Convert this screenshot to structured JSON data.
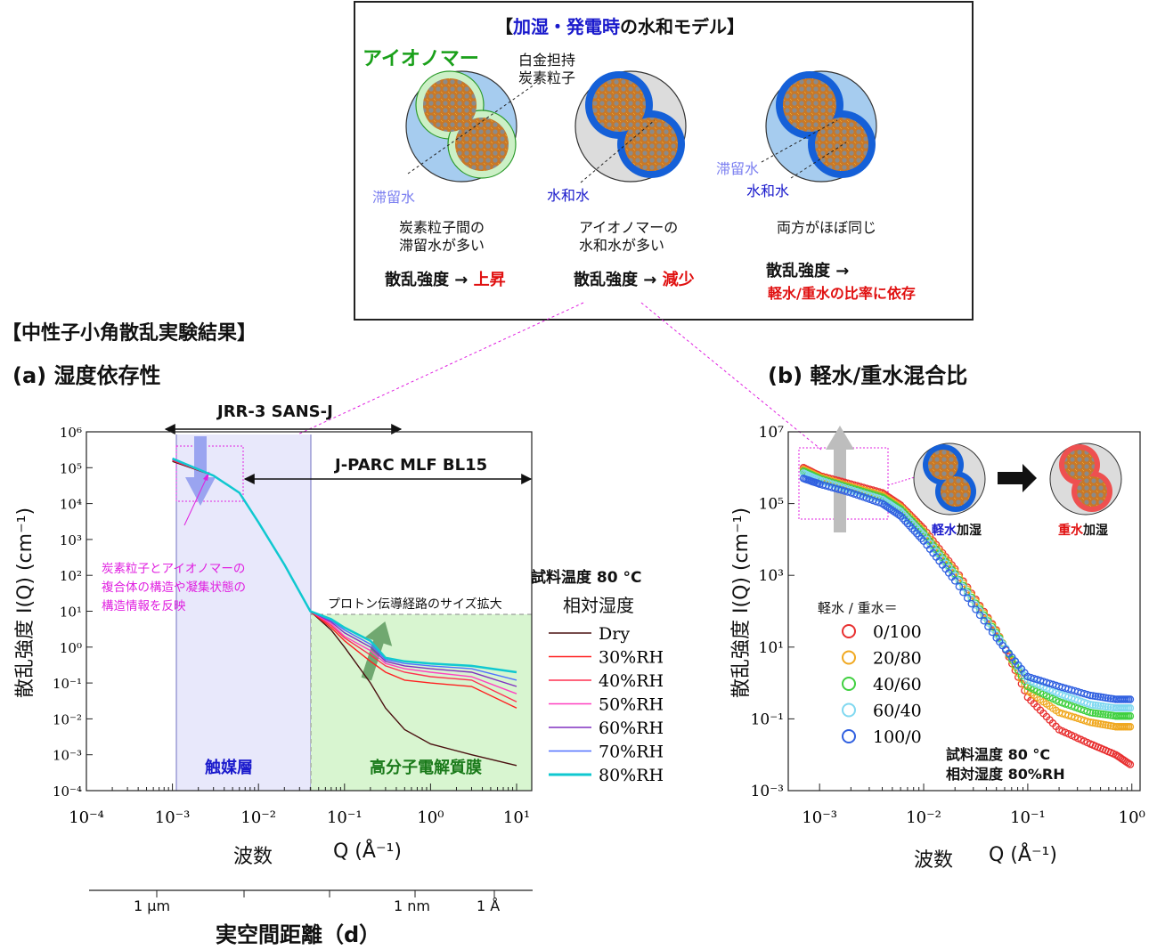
{
  "model_box": {
    "title_bracket_open": "【",
    "title_blue": "加湿・発電時",
    "title_rest": "の水和モデル",
    "title_bracket_close": "】",
    "ionomer_label": "アイオノマー",
    "pt_carbon_label_1": "白金担持",
    "pt_carbon_label_2": "炭素粒子",
    "stagnant_water": "滞留水",
    "hydration_water": "水和水",
    "desc_1a": "炭素粒子間の",
    "desc_1b": "滞留水が多い",
    "desc_2a": "アイオノマーの",
    "desc_2b": "水和水が多い",
    "desc_3a": "両方がほぼ同じ",
    "scatter_prefix": "散乱強度 →",
    "rise": "上昇",
    "fall": "減少",
    "depend": "軽水/重水の比率に依存",
    "colors": {
      "ionomer": "#1aa01a",
      "blue": "#1a1acc",
      "light_blue": "#7b7ff0",
      "red": "#e01010",
      "magenta": "#e020e0"
    }
  },
  "left": {
    "section_title": "【中性子小角散乱実験結果】",
    "panel_title": "(a) 湿度依存性",
    "jrr3": "JRR-3 SANS-J",
    "jparc": "J-PARC MLF BL15",
    "annotation_1": "炭素粒子とアイオノマーの",
    "annotation_2": "複合体の構造や凝集状態の",
    "annotation_3": "構造情報を反映",
    "proton_path": "プロトン伝導経路のサイズ拡大",
    "catalyst_layer": "触媒層",
    "membrane": "高分子電解質膜",
    "sample_temp": "試料温度 80 °C",
    "rh_title": "相対湿度",
    "ylabel": "散乱強度 I(Q) (cm⁻¹)",
    "xlabel_word": "波数",
    "xlabel_unit": "Q (Å⁻¹)",
    "d_ticks": [
      "1 μm",
      "1 nm",
      "1 Å"
    ],
    "d_label": "実空間距離（d）"
  },
  "right": {
    "panel_title": "(b) 軽水/重水混合比",
    "ylabel": "散乱強度 I(Q) (cm⁻¹)",
    "xlabel_word": "波数",
    "xlabel_unit": "Q (Å⁻¹)",
    "legend_title": "軽水 / 重水＝",
    "light_water": "軽水",
    "heavy_water": "重水",
    "humidified": "加湿",
    "sample_temp": "試料温度 80 °C",
    "rh": "相対湿度 80%RH"
  },
  "chart_data": [
    {
      "type": "line",
      "title": "(a) 湿度依存性",
      "xlabel": "波数 Q (Å⁻¹)",
      "ylabel": "散乱強度 I(Q) (cm⁻¹)",
      "xscale": "log",
      "yscale": "log",
      "xlim": [
        0.0001,
        15
      ],
      "ylim": [
        0.0001,
        1000000
      ],
      "x_ticks": [
        "10⁻⁴",
        "10⁻³",
        "10⁻²",
        "10⁻¹",
        "10⁰",
        "10¹"
      ],
      "y_ticks": [
        "10⁻⁴",
        "10⁻³",
        "10⁻²",
        "10⁻¹",
        "10⁰",
        "10¹",
        "10²",
        "10³",
        "10⁴",
        "10⁵",
        "10⁶"
      ],
      "legend_position": "right",
      "series": [
        {
          "name": "Dry",
          "color": "#4a1010",
          "x": [
            0.001,
            0.003,
            0.006,
            0.01,
            0.02,
            0.04,
            0.07,
            0.1,
            0.2,
            0.3,
            0.5,
            1,
            3,
            10
          ],
          "y": [
            150000,
            60000,
            20000,
            3000,
            200,
            10,
            3,
            1,
            0.1,
            0.02,
            0.005,
            0.002,
            0.001,
            0.0005
          ]
        },
        {
          "name": "30%RH",
          "color": "#ff2020",
          "x": [
            0.001,
            0.003,
            0.006,
            0.01,
            0.02,
            0.04,
            0.07,
            0.1,
            0.2,
            0.3,
            0.5,
            1,
            3,
            10
          ],
          "y": [
            160000,
            60000,
            20000,
            3000,
            200,
            10,
            3.5,
            1.5,
            0.4,
            0.2,
            0.12,
            0.1,
            0.08,
            0.02
          ]
        },
        {
          "name": "40%RH",
          "color": "#ff3050",
          "x": [
            0.001,
            0.003,
            0.006,
            0.01,
            0.02,
            0.04,
            0.07,
            0.1,
            0.2,
            0.3,
            0.5,
            1,
            3,
            10
          ],
          "y": [
            160000,
            60000,
            20000,
            3000,
            200,
            10,
            4,
            1.8,
            0.6,
            0.3,
            0.2,
            0.15,
            0.12,
            0.03
          ]
        },
        {
          "name": "50%RH",
          "color": "#ff40c0",
          "x": [
            0.001,
            0.003,
            0.006,
            0.01,
            0.02,
            0.04,
            0.07,
            0.1,
            0.2,
            0.3,
            0.5,
            1,
            3,
            10
          ],
          "y": [
            170000,
            60000,
            20000,
            3000,
            200,
            10,
            4.5,
            2,
            0.8,
            0.35,
            0.25,
            0.2,
            0.15,
            0.05
          ]
        },
        {
          "name": "60%RH",
          "color": "#8030c0",
          "x": [
            0.001,
            0.003,
            0.006,
            0.01,
            0.02,
            0.04,
            0.07,
            0.1,
            0.2,
            0.3,
            0.5,
            1,
            3,
            10
          ],
          "y": [
            170000,
            60000,
            20000,
            3000,
            200,
            10,
            5,
            2.5,
            1,
            0.4,
            0.3,
            0.25,
            0.2,
            0.08
          ]
        },
        {
          "name": "70%RH",
          "color": "#5070ff",
          "x": [
            0.001,
            0.003,
            0.006,
            0.01,
            0.02,
            0.04,
            0.07,
            0.1,
            0.2,
            0.3,
            0.5,
            1,
            3,
            10
          ],
          "y": [
            180000,
            60000,
            20000,
            3000,
            200,
            10,
            5.5,
            3,
            1.2,
            0.45,
            0.35,
            0.3,
            0.25,
            0.12
          ]
        },
        {
          "name": "80%RH",
          "color": "#10c8d0",
          "x": [
            0.001,
            0.003,
            0.006,
            0.01,
            0.02,
            0.04,
            0.07,
            0.1,
            0.2,
            0.3,
            0.5,
            1,
            3,
            10
          ],
          "y": [
            180000,
            60000,
            20000,
            3000,
            200,
            10,
            6,
            3.5,
            1.5,
            0.5,
            0.4,
            0.35,
            0.3,
            0.2
          ]
        }
      ]
    },
    {
      "type": "scatter",
      "title": "(b) 軽水/重水混合比",
      "xlabel": "波数 Q (Å⁻¹)",
      "ylabel": "散乱強度 I(Q) (cm⁻¹)",
      "xscale": "log",
      "yscale": "log",
      "xlim": [
        0.0005,
        1.2
      ],
      "ylim": [
        0.001,
        10000000
      ],
      "x_ticks": [
        "10⁻³",
        "10⁻²",
        "10⁻¹",
        "10⁰"
      ],
      "y_ticks": [
        "10⁻³",
        "10⁻¹",
        "10¹",
        "10³",
        "10⁵",
        "10⁷"
      ],
      "legend_position": "bottom-left",
      "series": [
        {
          "name": "0/100",
          "color": "#e83030",
          "x": [
            0.0007,
            0.001,
            0.002,
            0.004,
            0.006,
            0.01,
            0.02,
            0.05,
            0.1,
            0.2,
            0.4,
            0.7,
            1
          ],
          "y": [
            1000000,
            600000,
            350000,
            200000,
            90000,
            20000,
            1500,
            30,
            0.4,
            0.05,
            0.02,
            0.01,
            0.005
          ]
        },
        {
          "name": "20/80",
          "color": "#f0a820",
          "x": [
            0.0007,
            0.001,
            0.002,
            0.004,
            0.006,
            0.01,
            0.02,
            0.05,
            0.1,
            0.2,
            0.4,
            0.7,
            1
          ],
          "y": [
            900000,
            550000,
            300000,
            170000,
            80000,
            17000,
            1300,
            28,
            0.6,
            0.15,
            0.08,
            0.06,
            0.06
          ]
        },
        {
          "name": "40/60",
          "color": "#40d040",
          "x": [
            0.0007,
            0.001,
            0.002,
            0.004,
            0.006,
            0.01,
            0.02,
            0.05,
            0.1,
            0.2,
            0.4,
            0.7,
            1
          ],
          "y": [
            800000,
            500000,
            270000,
            150000,
            70000,
            15000,
            1100,
            25,
            0.8,
            0.3,
            0.15,
            0.12,
            0.12
          ]
        },
        {
          "name": "60/40",
          "color": "#80d8f0",
          "x": [
            0.0007,
            0.001,
            0.002,
            0.004,
            0.006,
            0.01,
            0.02,
            0.05,
            0.1,
            0.2,
            0.4,
            0.7,
            1
          ],
          "y": [
            700000,
            450000,
            240000,
            130000,
            60000,
            13000,
            1000,
            22,
            1.2,
            0.5,
            0.25,
            0.2,
            0.2
          ]
        },
        {
          "name": "100/0",
          "color": "#3060e0",
          "x": [
            0.0007,
            0.001,
            0.002,
            0.004,
            0.006,
            0.01,
            0.02,
            0.05,
            0.1,
            0.2,
            0.4,
            0.7,
            1
          ],
          "y": [
            500000,
            350000,
            200000,
            100000,
            45000,
            9000,
            700,
            18,
            1.5,
            0.8,
            0.45,
            0.35,
            0.35
          ]
        }
      ]
    }
  ]
}
